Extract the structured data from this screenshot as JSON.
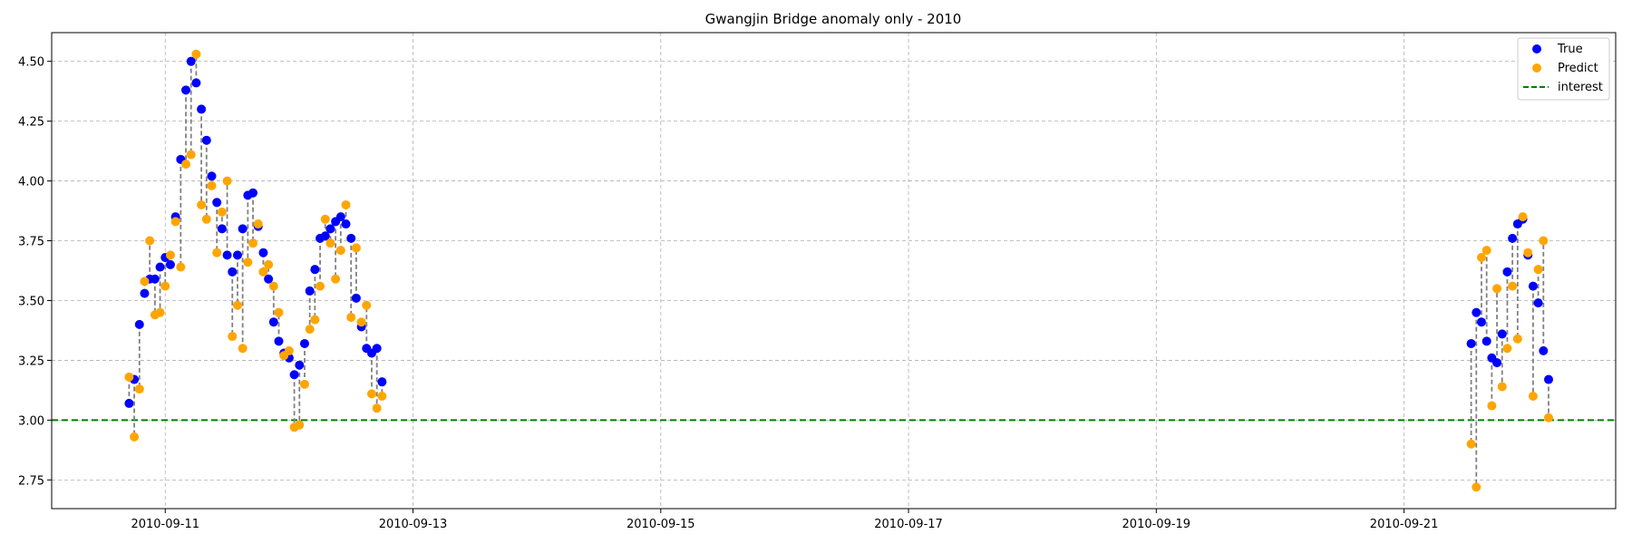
{
  "chart_data": {
    "type": "scatter",
    "title": "Gwangjin Bridge anomaly only - 2010",
    "xlabel": "",
    "ylabel": "",
    "xlim": [
      "2010-09-10 02:00",
      "2010-09-22 17:00"
    ],
    "ylim": [
      2.63,
      4.62
    ],
    "x_ticks": [
      "2010-09-11",
      "2010-09-13",
      "2010-09-15",
      "2010-09-17",
      "2010-09-19",
      "2010-09-21"
    ],
    "y_ticks": [
      "2.75",
      "3.00",
      "3.25",
      "3.50",
      "3.75",
      "4.00",
      "4.25",
      "4.50"
    ],
    "grid": true,
    "legend_position": "top-right",
    "interest_line": {
      "name": "interest",
      "y": 3.0,
      "color": "#008000"
    },
    "connector_color": "#808080",
    "series": [
      {
        "name": "True",
        "color": "#0000ff",
        "points": [
          [
            "2010-09-10 17:00",
            3.07
          ],
          [
            "2010-09-10 18:00",
            3.17
          ],
          [
            "2010-09-10 19:00",
            3.4
          ],
          [
            "2010-09-10 20:00",
            3.53
          ],
          [
            "2010-09-10 21:00",
            3.59
          ],
          [
            "2010-09-10 22:00",
            3.59
          ],
          [
            "2010-09-10 23:00",
            3.64
          ],
          [
            "2010-09-11 00:00",
            3.68
          ],
          [
            "2010-09-11 01:00",
            3.65
          ],
          [
            "2010-09-11 02:00",
            3.85
          ],
          [
            "2010-09-11 03:00",
            4.09
          ],
          [
            "2010-09-11 04:00",
            4.38
          ],
          [
            "2010-09-11 05:00",
            4.5
          ],
          [
            "2010-09-11 06:00",
            4.41
          ],
          [
            "2010-09-11 07:00",
            4.3
          ],
          [
            "2010-09-11 08:00",
            4.17
          ],
          [
            "2010-09-11 09:00",
            4.02
          ],
          [
            "2010-09-11 10:00",
            3.91
          ],
          [
            "2010-09-11 11:00",
            3.8
          ],
          [
            "2010-09-11 12:00",
            3.69
          ],
          [
            "2010-09-11 13:00",
            3.62
          ],
          [
            "2010-09-11 14:00",
            3.69
          ],
          [
            "2010-09-11 15:00",
            3.8
          ],
          [
            "2010-09-11 16:00",
            3.94
          ],
          [
            "2010-09-11 17:00",
            3.95
          ],
          [
            "2010-09-11 18:00",
            3.81
          ],
          [
            "2010-09-11 19:00",
            3.7
          ],
          [
            "2010-09-11 20:00",
            3.59
          ],
          [
            "2010-09-11 21:00",
            3.41
          ],
          [
            "2010-09-11 22:00",
            3.33
          ],
          [
            "2010-09-11 23:00",
            3.28
          ],
          [
            "2010-09-12 00:00",
            3.26
          ],
          [
            "2010-09-12 01:00",
            3.19
          ],
          [
            "2010-09-12 02:00",
            3.23
          ],
          [
            "2010-09-12 03:00",
            3.32
          ],
          [
            "2010-09-12 04:00",
            3.54
          ],
          [
            "2010-09-12 05:00",
            3.63
          ],
          [
            "2010-09-12 06:00",
            3.76
          ],
          [
            "2010-09-12 07:00",
            3.77
          ],
          [
            "2010-09-12 08:00",
            3.8
          ],
          [
            "2010-09-12 09:00",
            3.83
          ],
          [
            "2010-09-12 10:00",
            3.85
          ],
          [
            "2010-09-12 11:00",
            3.82
          ],
          [
            "2010-09-12 12:00",
            3.76
          ],
          [
            "2010-09-12 13:00",
            3.51
          ],
          [
            "2010-09-12 14:00",
            3.39
          ],
          [
            "2010-09-12 15:00",
            3.3
          ],
          [
            "2010-09-12 16:00",
            3.28
          ],
          [
            "2010-09-12 17:00",
            3.3
          ],
          [
            "2010-09-12 18:00",
            3.16
          ],
          [
            "2010-09-21 13:00",
            3.32
          ],
          [
            "2010-09-21 14:00",
            3.45
          ],
          [
            "2010-09-21 15:00",
            3.41
          ],
          [
            "2010-09-21 16:00",
            3.33
          ],
          [
            "2010-09-21 17:00",
            3.26
          ],
          [
            "2010-09-21 18:00",
            3.24
          ],
          [
            "2010-09-21 19:00",
            3.36
          ],
          [
            "2010-09-21 20:00",
            3.62
          ],
          [
            "2010-09-21 21:00",
            3.76
          ],
          [
            "2010-09-21 22:00",
            3.82
          ],
          [
            "2010-09-21 23:00",
            3.84
          ],
          [
            "2010-09-22 00:00",
            3.69
          ],
          [
            "2010-09-22 01:00",
            3.56
          ],
          [
            "2010-09-22 02:00",
            3.49
          ],
          [
            "2010-09-22 03:00",
            3.29
          ],
          [
            "2010-09-22 04:00",
            3.17
          ]
        ]
      },
      {
        "name": "Predict",
        "color": "#ffa500",
        "points": [
          [
            "2010-09-10 17:00",
            3.18
          ],
          [
            "2010-09-10 18:00",
            2.93
          ],
          [
            "2010-09-10 19:00",
            3.13
          ],
          [
            "2010-09-10 20:00",
            3.58
          ],
          [
            "2010-09-10 21:00",
            3.75
          ],
          [
            "2010-09-10 22:00",
            3.44
          ],
          [
            "2010-09-10 23:00",
            3.45
          ],
          [
            "2010-09-11 00:00",
            3.56
          ],
          [
            "2010-09-11 01:00",
            3.69
          ],
          [
            "2010-09-11 02:00",
            3.83
          ],
          [
            "2010-09-11 03:00",
            3.64
          ],
          [
            "2010-09-11 04:00",
            4.07
          ],
          [
            "2010-09-11 05:00",
            4.11
          ],
          [
            "2010-09-11 06:00",
            4.53
          ],
          [
            "2010-09-11 07:00",
            3.9
          ],
          [
            "2010-09-11 08:00",
            3.84
          ],
          [
            "2010-09-11 09:00",
            3.98
          ],
          [
            "2010-09-11 10:00",
            3.7
          ],
          [
            "2010-09-11 11:00",
            3.87
          ],
          [
            "2010-09-11 12:00",
            4.0
          ],
          [
            "2010-09-11 13:00",
            3.35
          ],
          [
            "2010-09-11 14:00",
            3.48
          ],
          [
            "2010-09-11 15:00",
            3.3
          ],
          [
            "2010-09-11 16:00",
            3.66
          ],
          [
            "2010-09-11 17:00",
            3.74
          ],
          [
            "2010-09-11 18:00",
            3.82
          ],
          [
            "2010-09-11 19:00",
            3.62
          ],
          [
            "2010-09-11 20:00",
            3.65
          ],
          [
            "2010-09-11 21:00",
            3.56
          ],
          [
            "2010-09-11 22:00",
            3.45
          ],
          [
            "2010-09-11 23:00",
            3.27
          ],
          [
            "2010-09-12 00:00",
            3.29
          ],
          [
            "2010-09-12 01:00",
            2.97
          ],
          [
            "2010-09-12 02:00",
            2.98
          ],
          [
            "2010-09-12 03:00",
            3.15
          ],
          [
            "2010-09-12 04:00",
            3.38
          ],
          [
            "2010-09-12 05:00",
            3.42
          ],
          [
            "2010-09-12 06:00",
            3.56
          ],
          [
            "2010-09-12 07:00",
            3.84
          ],
          [
            "2010-09-12 08:00",
            3.74
          ],
          [
            "2010-09-12 09:00",
            3.59
          ],
          [
            "2010-09-12 10:00",
            3.71
          ],
          [
            "2010-09-12 11:00",
            3.9
          ],
          [
            "2010-09-12 12:00",
            3.43
          ],
          [
            "2010-09-12 13:00",
            3.72
          ],
          [
            "2010-09-12 14:00",
            3.41
          ],
          [
            "2010-09-12 15:00",
            3.48
          ],
          [
            "2010-09-12 16:00",
            3.11
          ],
          [
            "2010-09-12 17:00",
            3.05
          ],
          [
            "2010-09-12 18:00",
            3.1
          ],
          [
            "2010-09-21 13:00",
            2.9
          ],
          [
            "2010-09-21 14:00",
            2.72
          ],
          [
            "2010-09-21 15:00",
            3.68
          ],
          [
            "2010-09-21 16:00",
            3.71
          ],
          [
            "2010-09-21 17:00",
            3.06
          ],
          [
            "2010-09-21 18:00",
            3.55
          ],
          [
            "2010-09-21 19:00",
            3.14
          ],
          [
            "2010-09-21 20:00",
            3.3
          ],
          [
            "2010-09-21 21:00",
            3.56
          ],
          [
            "2010-09-21 22:00",
            3.34
          ],
          [
            "2010-09-21 23:00",
            3.85
          ],
          [
            "2010-09-22 00:00",
            3.7
          ],
          [
            "2010-09-22 01:00",
            3.1
          ],
          [
            "2010-09-22 02:00",
            3.63
          ],
          [
            "2010-09-22 03:00",
            3.75
          ],
          [
            "2010-09-22 04:00",
            3.01
          ]
        ]
      }
    ]
  }
}
